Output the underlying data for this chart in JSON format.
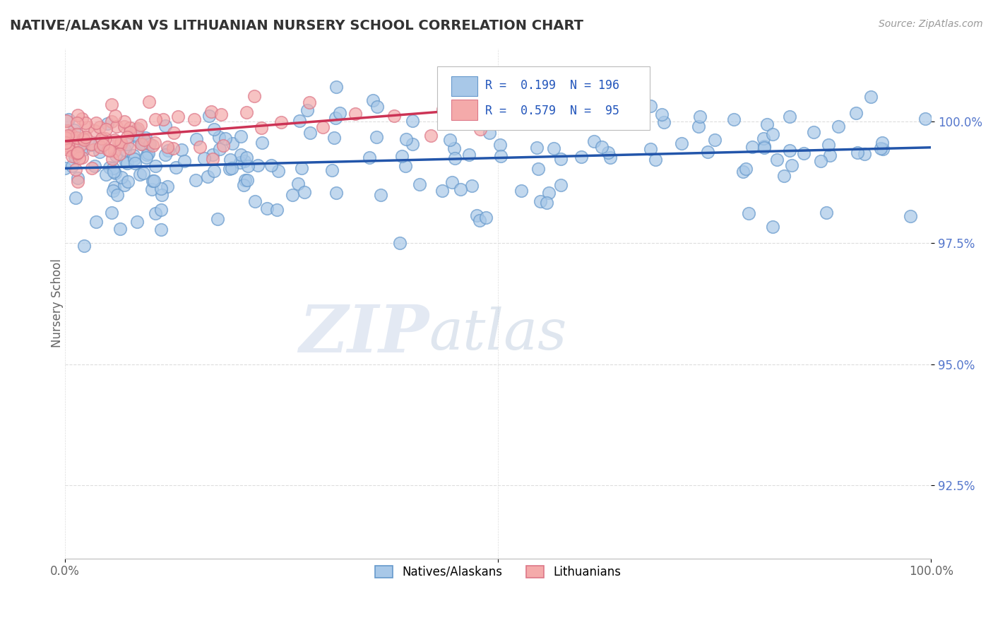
{
  "title": "NATIVE/ALASKAN VS LITHUANIAN NURSERY SCHOOL CORRELATION CHART",
  "source": "Source: ZipAtlas.com",
  "ylabel": "Nursery School",
  "y_ticks": [
    92.5,
    95.0,
    97.5,
    100.0
  ],
  "y_tick_labels": [
    "92.5%",
    "95.0%",
    "97.5%",
    "100.0%"
  ],
  "x_range": [
    0.0,
    100.0
  ],
  "y_range": [
    91.0,
    101.5
  ],
  "blue_R": 0.199,
  "blue_N": 196,
  "pink_R": 0.579,
  "pink_N": 95,
  "blue_color": "#A8C8E8",
  "pink_color": "#F4AAAA",
  "blue_edge_color": "#6699CC",
  "pink_edge_color": "#DD7788",
  "blue_line_color": "#2255AA",
  "pink_line_color": "#CC3355",
  "legend_blue_label": "Natives/Alaskans",
  "legend_pink_label": "Lithuanians",
  "watermark_zip": "ZIP",
  "watermark_atlas": "atlas",
  "background_color": "#FFFFFF",
  "grid_color": "#DDDDDD",
  "title_color": "#333333",
  "ytick_color": "#5577CC",
  "xtick_color": "#666666"
}
